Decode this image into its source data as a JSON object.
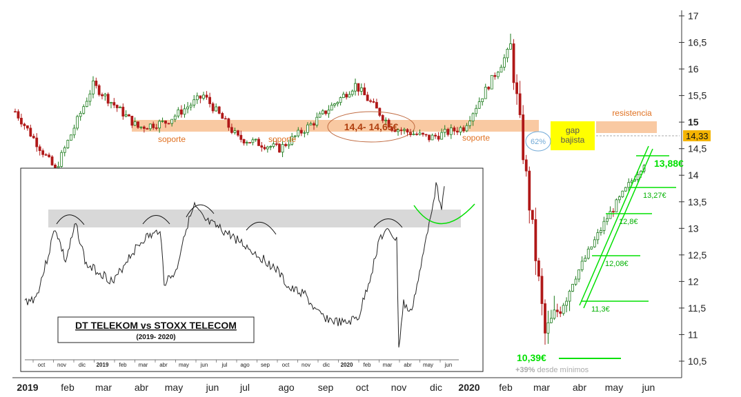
{
  "chart_data": [
    {
      "type": "candlestick",
      "ylim": [
        10.2,
        17.1
      ],
      "y_ticks": [
        "10,5",
        "11",
        "11,5",
        "12",
        "12,5",
        "13",
        "13,5",
        "14",
        "14,5",
        "15",
        "15,5",
        "16",
        "16,5",
        "17"
      ],
      "y_tick_values": [
        10.5,
        11,
        11.5,
        12,
        12.5,
        13,
        13.5,
        14,
        14.5,
        15,
        15.5,
        16,
        16.5,
        17
      ],
      "x_ticks": [
        "2019",
        "feb",
        "mar",
        "abr",
        "may",
        "jun",
        "jul",
        "ago",
        "sep",
        "oct",
        "nov",
        "dic",
        "2020",
        "feb",
        "mar",
        "abr",
        "may",
        "jun"
      ],
      "last_price": "14,33",
      "approx_close_path": [
        [
          "2019-01",
          15.2
        ],
        [
          "2019-02",
          14.1
        ],
        [
          "2019-03",
          15.7
        ],
        [
          "2019-04",
          14.9
        ],
        [
          "2019-05",
          15.0
        ],
        [
          "2019-06",
          15.5
        ],
        [
          "2019-07",
          14.7
        ],
        [
          "2019-08",
          14.5
        ],
        [
          "2019-09",
          15.0
        ],
        [
          "2019-10",
          15.7
        ],
        [
          "2019-11",
          14.9
        ],
        [
          "2019-12",
          14.7
        ],
        [
          "2020-01",
          14.9
        ],
        [
          "2020-02",
          16.4
        ],
        [
          "2020-03",
          11.0
        ],
        [
          "2020-04",
          12.0
        ],
        [
          "2020-05",
          13.2
        ],
        [
          "2020-06",
          14.33
        ]
      ]
    },
    {
      "type": "line",
      "title": "DT TELEKOM vs STOXX TELECOM",
      "subtitle": "(2019- 2020)",
      "x_ticks": [
        "oct",
        "nov",
        "dic",
        "2019",
        "feb",
        "mar",
        "abr",
        "may",
        "jun",
        "jul",
        "ago",
        "sep",
        "oct",
        "nov",
        "dic",
        "2020",
        "feb",
        "mar",
        "abr",
        "may",
        "jun"
      ]
    }
  ],
  "annotations": {
    "support_zone": "14,4- 14,65€",
    "soporte_1": "soporte",
    "soporte_2": "soporte",
    "soporte_3": "soporte",
    "resistencia": "resistencia",
    "gap": "gap\nbajista",
    "pct_62": "62%",
    "level_1388": "13,88€",
    "level_1327": "13,27€",
    "level_128": "12,8€",
    "level_1208": "12,08€",
    "level_113": "11,3€",
    "level_1039": "10,39€",
    "rebound": "+39%",
    "rebound_note": "desde mínimos"
  },
  "colors": {
    "zone": "#f9c9a2",
    "gap_box": "#ffff00",
    "green": "#00e000",
    "up_candle": "#1a7a1a",
    "down_candle": "#b01818",
    "label_orange": "#e07020",
    "dark_red": "#b04010"
  }
}
